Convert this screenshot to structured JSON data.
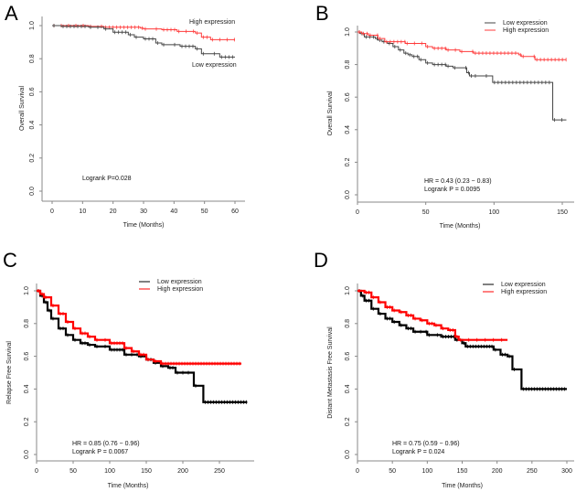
{
  "chart_data": [
    {
      "panel": "A",
      "type": "line",
      "subtype": "kaplan-meier",
      "xlabel": "Time (Months)",
      "ylabel": "Overall Survival",
      "xlim": [
        0,
        60
      ],
      "ylim": [
        0,
        1
      ],
      "xticks": [
        "0",
        "10",
        "20",
        "30",
        "40",
        "50",
        "60"
      ],
      "xtick_values": [
        0,
        10,
        20,
        30,
        40,
        50,
        60
      ],
      "yticks": [
        "0.0",
        "0.2",
        "0.4",
        "0.6",
        "0.8",
        "1.0"
      ],
      "ytick_values": [
        0,
        0.2,
        0.4,
        0.6,
        0.8,
        1.0
      ],
      "ytick_rotated": true,
      "legend": "inline-labels",
      "annotations": [
        "Logrank P=0.028"
      ],
      "series": [
        {
          "name": "High expression",
          "color": "#ff3b3b",
          "x": [
            0,
            12,
            17,
            29,
            30,
            36,
            41,
            47,
            49,
            52,
            60
          ],
          "y": [
            1.0,
            0.995,
            0.99,
            0.985,
            0.98,
            0.975,
            0.965,
            0.955,
            0.93,
            0.915,
            0.915
          ]
        },
        {
          "name": "Low expression",
          "color": "#444444",
          "x": [
            0,
            3,
            12,
            17,
            20,
            25,
            27,
            30,
            34,
            36,
            42,
            47,
            49,
            55,
            60
          ],
          "y": [
            1.0,
            0.995,
            0.99,
            0.98,
            0.96,
            0.945,
            0.93,
            0.92,
            0.895,
            0.885,
            0.875,
            0.86,
            0.83,
            0.81,
            0.81
          ]
        }
      ]
    },
    {
      "panel": "B",
      "type": "line",
      "subtype": "kaplan-meier",
      "xlabel": "Time (Months)",
      "ylabel": "Overall Survival",
      "xlim": [
        0,
        155
      ],
      "ylim": [
        0,
        1
      ],
      "xticks": [
        "0",
        "50",
        "100",
        "150"
      ],
      "xtick_values": [
        0,
        50,
        100,
        150
      ],
      "yticks": [
        "0.0",
        "0.2",
        "0.4",
        "0.6",
        "0.8",
        "1.0"
      ],
      "ytick_values": [
        0,
        0.2,
        0.4,
        0.6,
        0.8,
        1.0
      ],
      "ytick_rotated": true,
      "legend": "top-right",
      "annotations": [
        "HR = 0.43 (0.23 − 0.83)",
        "Logrank P = 0.0095"
      ],
      "series": [
        {
          "name": "Low expression",
          "color": "#444444",
          "x": [
            0,
            2,
            5,
            13,
            15,
            18,
            22,
            26,
            30,
            34,
            37,
            40,
            45,
            50,
            55,
            65,
            70,
            80,
            82,
            85,
            99,
            143,
            153
          ],
          "y": [
            1.0,
            0.99,
            0.97,
            0.96,
            0.95,
            0.94,
            0.93,
            0.91,
            0.89,
            0.87,
            0.86,
            0.85,
            0.83,
            0.81,
            0.8,
            0.79,
            0.78,
            0.75,
            0.73,
            0.73,
            0.69,
            0.46,
            0.46
          ]
        },
        {
          "name": "High expression",
          "color": "#ff3b3b",
          "x": [
            0,
            3,
            8,
            15,
            20,
            35,
            50,
            55,
            65,
            75,
            85,
            118,
            120,
            130,
            153
          ],
          "y": [
            1.0,
            0.99,
            0.98,
            0.96,
            0.94,
            0.93,
            0.91,
            0.9,
            0.89,
            0.88,
            0.87,
            0.86,
            0.85,
            0.83,
            0.83
          ]
        }
      ]
    },
    {
      "panel": "C",
      "type": "line",
      "subtype": "kaplan-meier",
      "xlabel": "Time (Months)",
      "ylabel": "Relapse Free Survival",
      "xlim": [
        0,
        290
      ],
      "ylim": [
        0,
        1
      ],
      "xticks": [
        "0",
        "50",
        "100",
        "150",
        "200",
        "250"
      ],
      "xtick_values": [
        0,
        50,
        100,
        150,
        200,
        250
      ],
      "yticks": [
        "0.0",
        "0.2",
        "0.4",
        "0.6",
        "0.8",
        "1.0"
      ],
      "ytick_values": [
        0,
        0.2,
        0.4,
        0.6,
        0.8,
        1.0
      ],
      "ytick_rotated": true,
      "legend": "top-right",
      "annotations": [
        "HR = 0.85 (0.76 − 0.96)",
        "Logrank P = 0.0067"
      ],
      "series": [
        {
          "name": "Low expression",
          "color": "#000000",
          "x": [
            0,
            5,
            10,
            15,
            20,
            30,
            40,
            50,
            60,
            70,
            80,
            100,
            120,
            140,
            150,
            160,
            170,
            180,
            190,
            215,
            228,
            288
          ],
          "y": [
            1.0,
            0.97,
            0.93,
            0.88,
            0.83,
            0.77,
            0.73,
            0.7,
            0.68,
            0.67,
            0.66,
            0.64,
            0.61,
            0.6,
            0.58,
            0.56,
            0.54,
            0.53,
            0.5,
            0.42,
            0.32,
            0.32
          ]
        },
        {
          "name": "High expression",
          "color": "#ff0000",
          "x": [
            0,
            5,
            10,
            20,
            30,
            40,
            50,
            60,
            70,
            80,
            100,
            120,
            130,
            140,
            150,
            160,
            170,
            280
          ],
          "y": [
            1.0,
            0.98,
            0.96,
            0.91,
            0.86,
            0.81,
            0.77,
            0.74,
            0.72,
            0.7,
            0.68,
            0.65,
            0.63,
            0.61,
            0.58,
            0.57,
            0.555,
            0.555
          ]
        }
      ]
    },
    {
      "panel": "D",
      "type": "line",
      "subtype": "kaplan-meier",
      "xlabel": "Time (Months)",
      "ylabel": "Distant Metastasis Free Survival",
      "xlim": [
        0,
        300
      ],
      "ylim": [
        0,
        1
      ],
      "xticks": [
        "0",
        "50",
        "100",
        "150",
        "200",
        "250",
        "300"
      ],
      "xtick_values": [
        0,
        50,
        100,
        150,
        200,
        250,
        300
      ],
      "yticks": [
        "0.0",
        "0.2",
        "0.4",
        "0.6",
        "0.8",
        "1.0"
      ],
      "ytick_values": [
        0,
        0.2,
        0.4,
        0.6,
        0.8,
        1.0
      ],
      "ytick_rotated": true,
      "legend": "top-right",
      "annotations": [
        "HR = 0.75 (0.59 − 0.96)",
        "Logrank P = 0.024"
      ],
      "series": [
        {
          "name": "Low expression",
          "color": "#000000",
          "x": [
            0,
            5,
            10,
            20,
            30,
            40,
            50,
            60,
            70,
            80,
            100,
            120,
            140,
            150,
            155,
            190,
            195,
            205,
            215,
            222,
            235,
            300
          ],
          "y": [
            1.0,
            0.97,
            0.94,
            0.89,
            0.86,
            0.83,
            0.81,
            0.79,
            0.77,
            0.75,
            0.73,
            0.72,
            0.7,
            0.68,
            0.66,
            0.66,
            0.64,
            0.61,
            0.6,
            0.52,
            0.4,
            0.4
          ]
        },
        {
          "name": "High expression",
          "color": "#ff0000",
          "x": [
            0,
            10,
            20,
            30,
            40,
            50,
            60,
            70,
            80,
            90,
            100,
            110,
            120,
            130,
            140,
            145,
            215
          ],
          "y": [
            1.0,
            0.99,
            0.96,
            0.93,
            0.9,
            0.88,
            0.87,
            0.85,
            0.83,
            0.82,
            0.8,
            0.79,
            0.77,
            0.76,
            0.72,
            0.7,
            0.7
          ]
        }
      ]
    }
  ]
}
